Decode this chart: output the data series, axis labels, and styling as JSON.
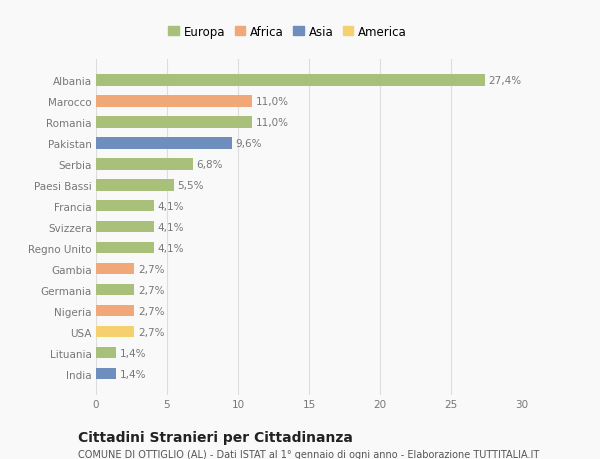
{
  "countries": [
    "Albania",
    "Marocco",
    "Romania",
    "Pakistan",
    "Serbia",
    "Paesi Bassi",
    "Francia",
    "Svizzera",
    "Regno Unito",
    "Gambia",
    "Germania",
    "Nigeria",
    "USA",
    "Lituania",
    "India"
  ],
  "values": [
    27.4,
    11.0,
    11.0,
    9.6,
    6.8,
    5.5,
    4.1,
    4.1,
    4.1,
    2.7,
    2.7,
    2.7,
    2.7,
    1.4,
    1.4
  ],
  "labels": [
    "27,4%",
    "11,0%",
    "11,0%",
    "9,6%",
    "6,8%",
    "5,5%",
    "4,1%",
    "4,1%",
    "4,1%",
    "2,7%",
    "2,7%",
    "2,7%",
    "2,7%",
    "1,4%",
    "1,4%"
  ],
  "colors": [
    "#a8c07a",
    "#f0a878",
    "#a8c07a",
    "#6e8fbe",
    "#a8c07a",
    "#a8c07a",
    "#a8c07a",
    "#a8c07a",
    "#a8c07a",
    "#f0a878",
    "#a8c07a",
    "#f0a878",
    "#f5d06e",
    "#a8c07a",
    "#6e8fbe"
  ],
  "legend_labels": [
    "Europa",
    "Africa",
    "Asia",
    "America"
  ],
  "legend_colors": [
    "#a8c07a",
    "#f0a878",
    "#6e8fbe",
    "#f5d06e"
  ],
  "title": "Cittadini Stranieri per Cittadinanza",
  "subtitle": "COMUNE DI OTTIGLIO (AL) - Dati ISTAT al 1° gennaio di ogni anno - Elaborazione TUTTITALIA.IT",
  "xlim": [
    0,
    30
  ],
  "xticks": [
    0,
    5,
    10,
    15,
    20,
    25,
    30
  ],
  "background_color": "#f9f9f9",
  "grid_color": "#dddddd",
  "text_color": "#777777",
  "label_fontsize": 7.5,
  "tick_fontsize": 7.5,
  "title_fontsize": 10,
  "subtitle_fontsize": 7,
  "bar_height": 0.55
}
